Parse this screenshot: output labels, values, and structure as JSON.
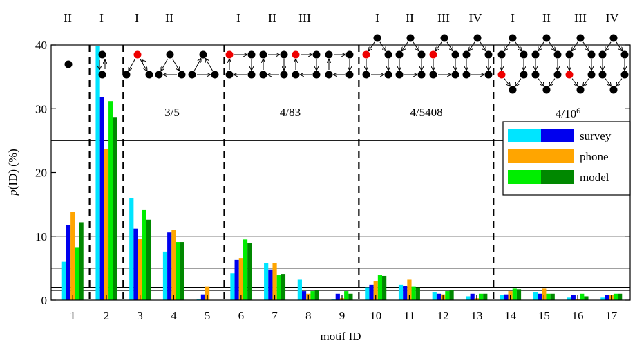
{
  "chart_data": {
    "type": "bar",
    "xlabel": "motif ID",
    "ylabel": "p(ID) (%)",
    "ylim": [
      0,
      40
    ],
    "yticks": [
      0,
      10,
      20,
      30,
      40
    ],
    "categories": [
      "1",
      "2",
      "3",
      "4",
      "5",
      "6",
      "7",
      "8",
      "9",
      "10",
      "11",
      "12",
      "13",
      "14",
      "15",
      "16",
      "17"
    ],
    "series": [
      {
        "name": "survey",
        "color": "#00e5ff",
        "values": [
          6.0,
          39.8,
          16.0,
          7.6,
          0.1,
          4.2,
          5.8,
          3.2,
          0.1,
          2.0,
          2.4,
          1.2,
          0.6,
          0.8,
          1.2,
          0.4,
          0.4
        ]
      },
      {
        "name": "survey",
        "color": "#0000ee",
        "values": [
          11.8,
          31.8,
          11.2,
          10.6,
          0.9,
          6.3,
          4.8,
          1.4,
          1.0,
          2.4,
          2.2,
          1.0,
          1.0,
          0.9,
          1.0,
          0.8,
          0.8
        ]
      },
      {
        "name": "phone",
        "color": "#ffa500",
        "values": [
          13.8,
          23.7,
          9.6,
          11.0,
          2.1,
          6.6,
          5.8,
          1.0,
          0.3,
          3.0,
          3.2,
          0.9,
          0.3,
          1.4,
          1.8,
          0.2,
          0.8
        ]
      },
      {
        "name": "model",
        "color": "#00ee00",
        "values": [
          8.3,
          31.2,
          14.1,
          9.1,
          0.0,
          9.5,
          3.9,
          1.4,
          1.4,
          3.9,
          2.1,
          1.4,
          1.0,
          1.8,
          1.0,
          1.0,
          1.0
        ]
      },
      {
        "name": "model",
        "color": "#008800",
        "values": [
          12.2,
          28.7,
          12.6,
          9.1,
          0.0,
          8.9,
          4.0,
          1.5,
          1.0,
          3.8,
          2.0,
          1.6,
          1.0,
          1.7,
          1.0,
          0.6,
          1.0
        ]
      }
    ],
    "reference_lines": [
      25,
      10,
      5,
      2,
      1.5
    ],
    "legend": {
      "placement": "right",
      "entries": [
        {
          "label": "survey",
          "colors": [
            "#00e5ff",
            "#0000ee"
          ]
        },
        {
          "label": "phone",
          "colors": [
            "#ffa500"
          ]
        },
        {
          "label": "model",
          "colors": [
            "#00ee00",
            "#008800"
          ]
        }
      ]
    },
    "group_labels": [
      {
        "text": "3/5",
        "sup": ""
      },
      {
        "text": "4/83",
        "sup": ""
      },
      {
        "text": "4/5408",
        "sup": ""
      },
      {
        "text": "4/10",
        "sup": "6"
      }
    ],
    "roman_labels": [
      "II",
      "I",
      "I",
      "II",
      "I",
      "II",
      "III",
      "I",
      "II",
      "III",
      "IV",
      "I",
      "II",
      "III",
      "IV"
    ],
    "group_dividers_after": [
      1,
      2,
      5,
      9,
      13
    ]
  }
}
